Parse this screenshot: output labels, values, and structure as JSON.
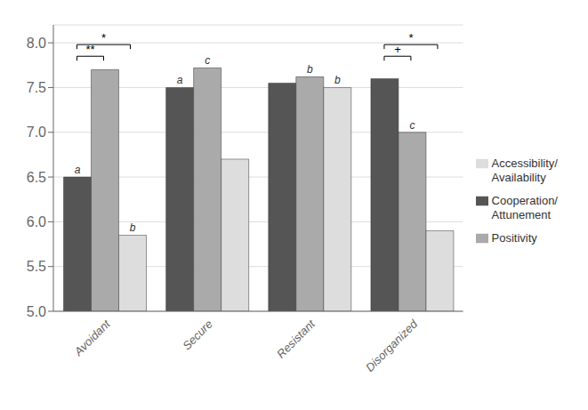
{
  "chart_data": {
    "type": "bar",
    "categories": [
      "Avoidant",
      "Secure",
      "Resistant",
      "Disorganized"
    ],
    "series": [
      {
        "name": "Cooperation/\nAttunement",
        "color": "#555555",
        "values": [
          6.5,
          7.5,
          7.55,
          7.6
        ],
        "letters": [
          "a",
          "a",
          null,
          null
        ]
      },
      {
        "name": "Positivity",
        "color": "#aaaaaa",
        "values": [
          7.7,
          7.72,
          7.62,
          7.0
        ],
        "letters": [
          null,
          "c",
          "b",
          "c"
        ]
      },
      {
        "name": "Accessibility/\nAvailability",
        "color": "#dddddd",
        "values": [
          5.85,
          6.7,
          7.5,
          5.9
        ],
        "letters": [
          "b",
          null,
          "b",
          null
        ]
      }
    ],
    "ylim": [
      5,
      8.2
    ],
    "yticks": [
      {
        "value": 5,
        "label": "5.0"
      },
      {
        "value": 5.5,
        "label": "5.5"
      },
      {
        "value": 6,
        "label": "6.0"
      },
      {
        "value": 6.5,
        "label": "6.5"
      },
      {
        "value": 7,
        "label": "7.0"
      },
      {
        "value": 7.5,
        "label": "7.5"
      },
      {
        "value": 8,
        "label": "8.0"
      }
    ],
    "grid": true,
    "legend": "right",
    "brackets": [
      {
        "category": "Avoidant",
        "series": [
          "Cooperation/\nAttunement",
          "Positivity"
        ],
        "y": 7.85,
        "text": "**"
      },
      {
        "category": "Avoidant",
        "series": [
          "Cooperation/\nAttunement",
          "Accessibility/\nAvailability"
        ],
        "y": 7.98,
        "text": "*"
      },
      {
        "category": "Disorganized",
        "series": [
          "Cooperation/\nAttunement",
          "Positivity"
        ],
        "y": 7.85,
        "text": "+"
      },
      {
        "category": "Disorganized",
        "series": [
          "Cooperation/\nAttunement",
          "Accessibility/\nAvailability"
        ],
        "y": 7.98,
        "text": "*"
      }
    ]
  }
}
